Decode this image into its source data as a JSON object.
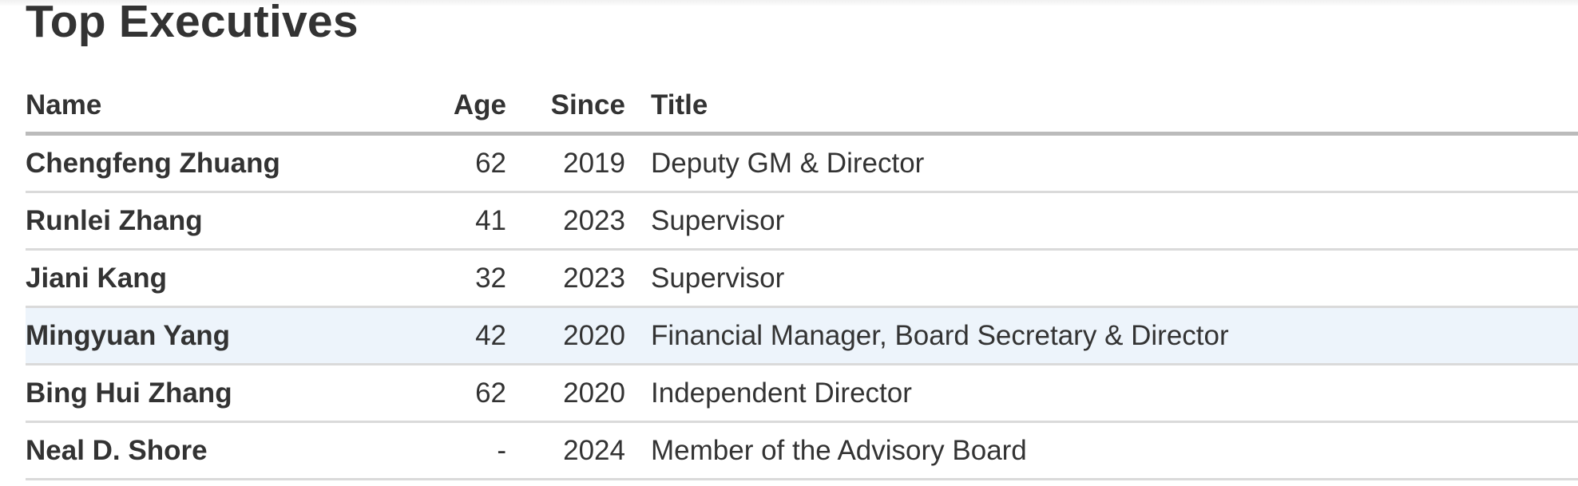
{
  "heading": "Top Executives",
  "columns": {
    "name": "Name",
    "age": "Age",
    "since": "Since",
    "title": "Title"
  },
  "rows": [
    {
      "name": "Chengfeng Zhuang",
      "age": "62",
      "since": "2019",
      "title": "Deputy GM & Director"
    },
    {
      "name": "Runlei Zhang",
      "age": "41",
      "since": "2023",
      "title": "Supervisor"
    },
    {
      "name": "Jiani Kang",
      "age": "32",
      "since": "2023",
      "title": "Supervisor"
    },
    {
      "name": "Mingyuan Yang",
      "age": "42",
      "since": "2020",
      "title": "Financial Manager, Board Secretary & Director",
      "highlighted": true
    },
    {
      "name": "Bing Hui Zhang",
      "age": "62",
      "since": "2020",
      "title": "Independent Director"
    },
    {
      "name": "Neal D. Shore",
      "age": "-",
      "since": "2024",
      "title": "Member of the Advisory Board"
    }
  ],
  "colors": {
    "highlight_row": "#edf4fb",
    "header_rule": "#bbbbbb",
    "row_rule": "#dadada",
    "text": "#333333"
  }
}
